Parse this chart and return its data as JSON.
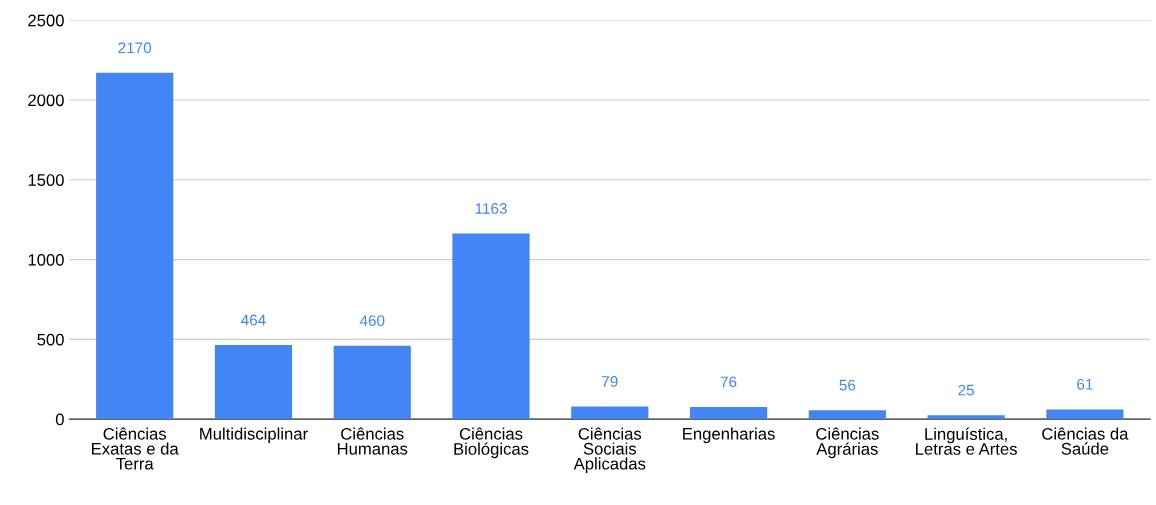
{
  "chart_data": {
    "type": "bar",
    "categories": [
      "Ciências\nExatas e da\nTerra",
      "Multidisciplinar",
      "Ciências\nHumanas",
      "Ciências\nBiológicas",
      "Ciências\nSociais\nAplicadas",
      "Engenharias",
      "Ciências\nAgrárias",
      "Linguística,\nLetras e Artes",
      "Ciências da\nSaúde"
    ],
    "values": [
      2170,
      464,
      460,
      1163,
      79,
      76,
      56,
      25,
      61
    ],
    "color": "#4285f4",
    "data_labels": true,
    "ylim": [
      0,
      2500
    ],
    "yticks": [
      0,
      500,
      1000,
      1500,
      2000,
      2500
    ],
    "grid": "y",
    "legend": false
  }
}
